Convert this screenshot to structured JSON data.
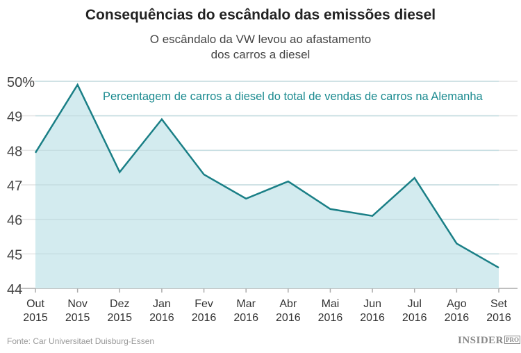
{
  "chart_data": {
    "type": "area",
    "title": "Consequências do escândalo das emissões diesel",
    "subtitle": [
      "O escândalo da VW levou ao afastamento",
      "dos carros a diesel"
    ],
    "annotation": "Percentagem de carros a diesel do total de vendas de carros na Alemanha",
    "categories": [
      [
        "Out",
        "2015"
      ],
      [
        "Nov",
        "2015"
      ],
      [
        "Dez",
        "2015"
      ],
      [
        "Jan",
        "2016"
      ],
      [
        "Fev",
        "2016"
      ],
      [
        "Mar",
        "2016"
      ],
      [
        "Abr",
        "2016"
      ],
      [
        "Mai",
        "2016"
      ],
      [
        "Jun",
        "2016"
      ],
      [
        "Jul",
        "2016"
      ],
      [
        "Ago",
        "2016"
      ],
      [
        "Set",
        "2016"
      ]
    ],
    "values": [
      47.93,
      49.9,
      47.37,
      48.9,
      47.3,
      46.6,
      47.1,
      46.3,
      46.1,
      47.2,
      45.3,
      44.6
    ],
    "ylim": [
      44,
      50
    ],
    "yticks": [
      "44",
      "45",
      "46",
      "47",
      "48",
      "49",
      "50%"
    ],
    "grid": true,
    "colors": {
      "line": "#1a7f86",
      "fill": "#d3ebef",
      "annotation": "#1a8a8f"
    }
  },
  "source": "Fonte: Car Universitaet Duisburg-Essen",
  "logo": {
    "main": "INSIDER",
    "sub": "PRO"
  }
}
